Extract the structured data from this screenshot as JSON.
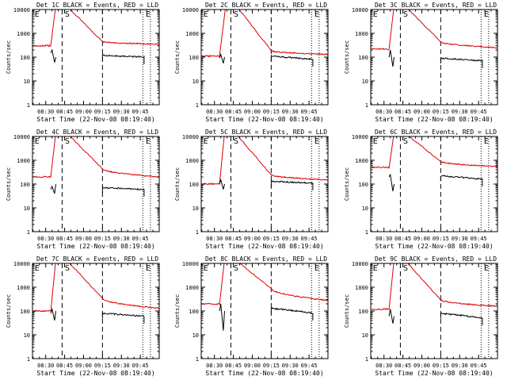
{
  "colors": {
    "events": "#000000",
    "lld": "#e00000",
    "frame": "#000000",
    "background": "#ffffff"
  },
  "shared": {
    "type": "line",
    "xlabel": "Start Time (22-Nov-08 08:19:40)",
    "ylabel": "Counts/sec",
    "yscale": "log",
    "ylim": [
      1,
      10000
    ],
    "ytick_values": [
      1,
      10,
      100,
      1000,
      10000
    ],
    "ytick_labels": [
      "1",
      "10",
      "100",
      "1000",
      "10000"
    ],
    "xlim_minutes": [
      -0.5,
      100
    ],
    "xtick_minutes": [
      10,
      25,
      40,
      55,
      70,
      85
    ],
    "xtick_labels": [
      "08:30",
      "08:45",
      "09:00",
      "09:15",
      "09:30",
      "09:45"
    ],
    "dash_lines_minutes": [
      23,
      55
    ],
    "dotted_lines_minutes": [
      87,
      93
    ],
    "marker_labels": [
      "E",
      "S",
      "E"
    ],
    "marker_minutes": [
      0,
      24,
      88
    ]
  },
  "chart_data": [
    {
      "title": "Det 1C BLACK = Events, RED = LLD",
      "gap": [
        19,
        55
      ],
      "lld": {
        "baseline": 300,
        "rise": [
          14,
          18
        ],
        "peak": 10000,
        "decay_end": 55,
        "tail": [
          450,
          350
        ]
      },
      "events": {
        "points": [
          [
            14,
            150
          ],
          [
            15,
            200
          ],
          [
            17,
            60
          ],
          [
            18,
            100
          ]
        ],
        "tail_x": [
          55,
          88
        ],
        "tail": [
          120,
          100
        ]
      }
    },
    {
      "title": "Det 2C BLACK = Events, RED = LLD",
      "gap": [
        19,
        55
      ],
      "lld": {
        "baseline": 110,
        "rise": [
          14,
          19
        ],
        "peak": 10000,
        "decay_end": 55,
        "tail": [
          190,
          130
        ]
      },
      "events": {
        "points": [
          [
            14,
            90
          ],
          [
            15,
            130
          ],
          [
            17,
            55
          ],
          [
            18,
            100
          ]
        ],
        "tail_x": [
          55,
          88
        ],
        "tail": [
          110,
          80
        ]
      }
    },
    {
      "title": "Det 3C BLACK = Events, RED = LLD",
      "gap": [
        19,
        55
      ],
      "lld": {
        "baseline": 220,
        "rise": [
          14,
          18
        ],
        "peak": 10000,
        "decay_end": 55,
        "tail": [
          450,
          250
        ]
      },
      "events": {
        "points": [
          [
            14,
            100
          ],
          [
            15,
            200
          ],
          [
            17,
            40
          ],
          [
            18,
            100
          ]
        ],
        "tail_x": [
          55,
          88
        ],
        "tail": [
          90,
          70
        ]
      }
    },
    {
      "title": "Det 4C BLACK = Events, RED = LLD",
      "gap": [
        19,
        55
      ],
      "lld": {
        "baseline": 200,
        "rise": [
          14,
          18
        ],
        "peak": 10000,
        "decay_end": 55,
        "tail": [
          450,
          200
        ]
      },
      "events": {
        "points": [
          [
            14,
            60
          ],
          [
            15,
            80
          ],
          [
            17,
            40
          ],
          [
            18,
            100
          ]
        ],
        "tail_x": [
          55,
          88
        ],
        "tail": [
          70,
          60
        ]
      }
    },
    {
      "title": "Det 5C BLACK = Events, RED = LLD",
      "gap": [
        19,
        55
      ],
      "lld": {
        "baseline": 100,
        "rise": [
          14,
          18
        ],
        "peak": 10000,
        "decay_end": 55,
        "tail": [
          250,
          150
        ]
      },
      "events": {
        "points": [
          [
            14,
            100
          ],
          [
            15,
            150
          ],
          [
            17,
            60
          ],
          [
            18,
            100
          ]
        ],
        "tail_x": [
          55,
          88
        ],
        "tail": [
          130,
          110
        ]
      }
    },
    {
      "title": "Det 6C BLACK = Events, RED = LLD",
      "gap": [
        19,
        55
      ],
      "lld": {
        "baseline": 500,
        "rise": [
          14,
          18
        ],
        "peak": 10000,
        "decay_end": 55,
        "tail": [
          900,
          550
        ]
      },
      "events": {
        "points": [
          [
            14,
            200
          ],
          [
            15,
            250
          ],
          [
            17,
            50
          ],
          [
            18,
            100
          ]
        ],
        "tail_x": [
          55,
          88
        ],
        "tail": [
          220,
          160
        ]
      }
    },
    {
      "title": "Det 7C BLACK = Events, RED = LLD",
      "gap": [
        19,
        55
      ],
      "lld": {
        "baseline": 100,
        "rise": [
          14,
          18
        ],
        "peak": 10000,
        "decay_end": 55,
        "tail": [
          350,
          130
        ]
      },
      "events": {
        "points": [
          [
            14,
            80
          ],
          [
            15,
            120
          ],
          [
            17,
            40
          ],
          [
            18,
            100
          ]
        ],
        "tail_x": [
          55,
          88
        ],
        "tail": [
          80,
          60
        ]
      }
    },
    {
      "title": "Det 8C BLACK = Events, RED = LLD",
      "gap": [
        19,
        55
      ],
      "lld": {
        "baseline": 200,
        "rise": [
          14,
          18
        ],
        "peak": 10000,
        "decay_end": 55,
        "tail": [
          900,
          280
        ]
      },
      "events": {
        "points": [
          [
            14,
            100
          ],
          [
            15,
            200
          ],
          [
            17,
            15
          ],
          [
            18,
            100
          ]
        ],
        "tail_x": [
          55,
          88
        ],
        "tail": [
          130,
          80
        ]
      }
    },
    {
      "title": "Det 9C BLACK = Events, RED = LLD",
      "gap": [
        19,
        55
      ],
      "lld": {
        "baseline": 120,
        "rise": [
          14,
          18
        ],
        "peak": 10000,
        "decay_end": 55,
        "tail": [
          300,
          160
        ]
      },
      "events": {
        "points": [
          [
            14,
            60
          ],
          [
            15,
            120
          ],
          [
            17,
            30
          ],
          [
            18,
            60
          ]
        ],
        "tail_x": [
          55,
          88
        ],
        "tail": [
          80,
          50
        ]
      }
    }
  ]
}
